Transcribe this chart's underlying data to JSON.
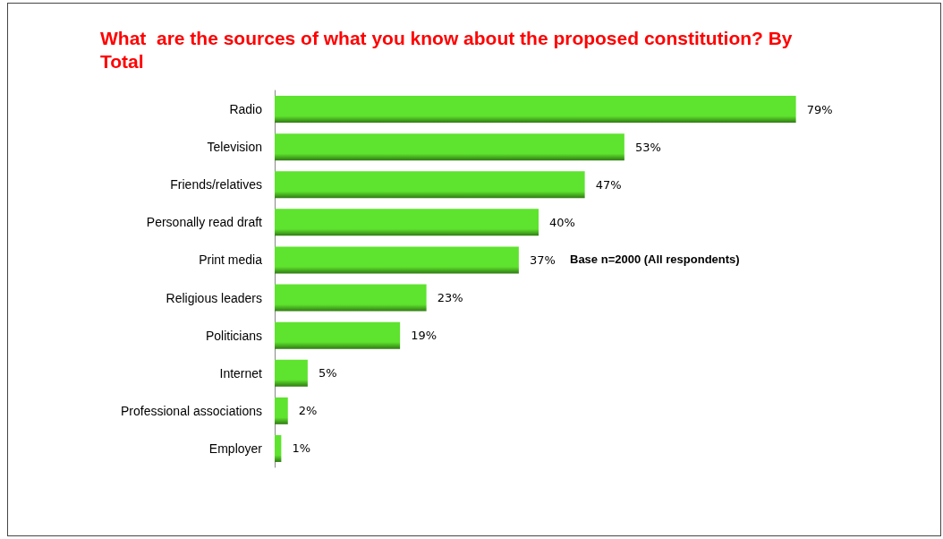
{
  "chart_data": {
    "type": "bar",
    "orientation": "horizontal",
    "title": "What  are the sources of what you know about the proposed constitution? By Total",
    "categories": [
      "Radio",
      "Television",
      "Friends/relatives",
      "Personally read draft",
      "Print media",
      "Religious leaders",
      "Politicians",
      "Internet",
      "Professional associations",
      "Employer"
    ],
    "values": [
      79,
      53,
      47,
      40,
      37,
      23,
      19,
      5,
      2,
      1
    ],
    "value_labels": [
      "79%",
      "53%",
      "47%",
      "40%",
      "37%",
      "23%",
      "19%",
      "5%",
      "2%",
      "1%"
    ],
    "color": "#5ee32e",
    "annotations": [
      "Base n=2000 (All respondents)"
    ]
  }
}
